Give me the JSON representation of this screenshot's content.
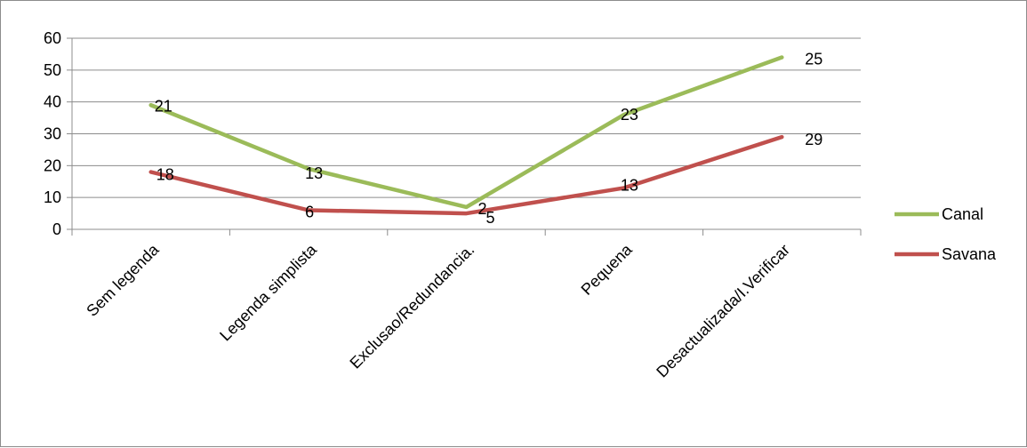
{
  "chart_data": {
    "type": "line",
    "categories": [
      "Sem legenda",
      "Legenda simplista",
      "Exclusao/Redundancia.",
      "Pequena",
      "Desactualizada/I.Verificar"
    ],
    "ylim": [
      0,
      60
    ],
    "yticks": [
      0,
      10,
      20,
      30,
      40,
      50,
      60
    ],
    "grid": true,
    "legend": "right",
    "series": [
      {
        "name": "Canal",
        "color": "#9bbb59",
        "values": [
          39,
          19,
          7,
          36,
          54
        ],
        "labels": [
          "21",
          "13",
          "2",
          "23",
          "25"
        ]
      },
      {
        "name": "Savana",
        "color": "#c0504d",
        "values": [
          18,
          6,
          5,
          13,
          29
        ],
        "labels": [
          "18",
          "6",
          "5",
          "13",
          "29"
        ]
      }
    ]
  }
}
